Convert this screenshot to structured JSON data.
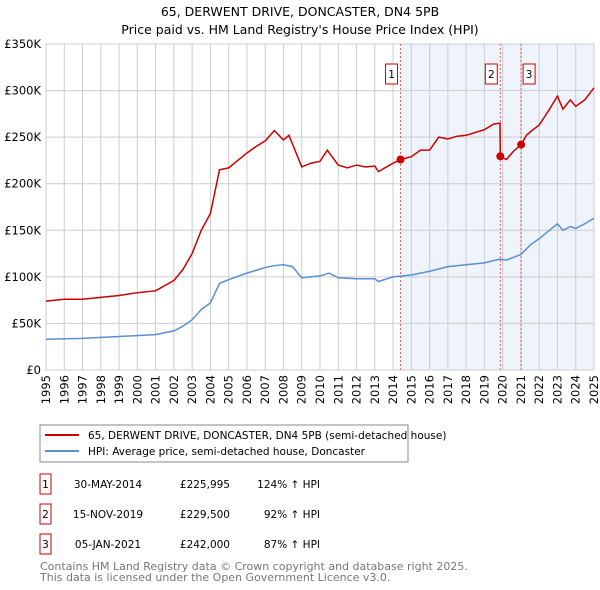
{
  "chart_data": {
    "type": "line",
    "title": "65, DERWENT DRIVE, DONCASTER, DN4 5PB",
    "subtitle": "Price paid vs. HM Land Registry's House Price Index (HPI)",
    "xlabel": "",
    "ylabel": "",
    "xlim": [
      1995,
      2025
    ],
    "ylim": [
      0,
      350000
    ],
    "x_ticks": [
      "1995",
      "1996",
      "1997",
      "1998",
      "1999",
      "2000",
      "2001",
      "2002",
      "2003",
      "2004",
      "2005",
      "2006",
      "2007",
      "2008",
      "2009",
      "2010",
      "2011",
      "2012",
      "2013",
      "2014",
      "2015",
      "2016",
      "2017",
      "2018",
      "2019",
      "2020",
      "2021",
      "2022",
      "2023",
      "2024",
      "2025"
    ],
    "y_ticks": [
      {
        "value": 0,
        "label": "£0"
      },
      {
        "value": 50000,
        "label": "£50K"
      },
      {
        "value": 100000,
        "label": "£100K"
      },
      {
        "value": 150000,
        "label": "£150K"
      },
      {
        "value": 200000,
        "label": "£200K"
      },
      {
        "value": 250000,
        "label": "£250K"
      },
      {
        "value": 300000,
        "label": "£300K"
      },
      {
        "value": 350000,
        "label": "£350K"
      }
    ],
    "grid": true,
    "shaded_from": 2014.41,
    "series": [
      {
        "name": "65, DERWENT DRIVE, DONCASTER, DN4 5PB (semi-detached house)",
        "color": "#cc0000",
        "x": [
          1995,
          1996,
          1997,
          1998,
          1999,
          2000,
          2001,
          2002,
          2002.5,
          2003,
          2003.5,
          2004,
          2004.5,
          2005,
          2005.5,
          2006,
          2006.5,
          2007,
          2007.5,
          2008,
          2008.3,
          2009,
          2009.5,
          2010,
          2010.4,
          2011,
          2011.5,
          2012,
          2012.5,
          2013,
          2013.2,
          2014,
          2014.41,
          2015,
          2015.5,
          2016,
          2016.5,
          2017,
          2017.5,
          2018,
          2018.5,
          2019,
          2019.5,
          2019.85,
          2019.87,
          2020.2,
          2020.6,
          2021.01,
          2021.3,
          2021.6,
          2022,
          2022.5,
          2023,
          2023.3,
          2023.7,
          2024,
          2024.5,
          2025
        ],
        "y": [
          74000,
          76000,
          76000,
          78000,
          80000,
          83000,
          85000,
          96000,
          108000,
          125000,
          150000,
          168000,
          215000,
          217000,
          225000,
          233000,
          240000,
          246000,
          257000,
          247000,
          252000,
          218000,
          222000,
          224000,
          236000,
          220000,
          217000,
          220000,
          218000,
          219000,
          213000,
          222000,
          225995,
          229000,
          236000,
          236000,
          250000,
          248000,
          251000,
          252000,
          255000,
          258000,
          264000,
          265000,
          229500,
          226000,
          235000,
          242000,
          252000,
          257000,
          263000,
          278000,
          294000,
          280000,
          290000,
          283000,
          290000,
          303000
        ]
      },
      {
        "name": "HPI: Average price, semi-detached house, Doncaster",
        "color": "#5b8fd0",
        "x": [
          1995,
          1997,
          1999,
          2001,
          2002,
          2002.5,
          2003,
          2003.5,
          2004,
          2004.5,
          2005,
          2006,
          2007,
          2007.5,
          2008,
          2008.5,
          2009,
          2010,
          2010.5,
          2011,
          2012,
          2013,
          2013.2,
          2014,
          2015,
          2016,
          2017,
          2018,
          2019,
          2019.85,
          2020.2,
          2021,
          2021.5,
          2022,
          2022.5,
          2023,
          2023.3,
          2023.7,
          2024,
          2024.5,
          2025
        ],
        "y": [
          33000,
          34000,
          36000,
          38000,
          42000,
          47000,
          54000,
          65000,
          72000,
          93000,
          97000,
          104000,
          110000,
          112000,
          113000,
          111000,
          99000,
          101000,
          104000,
          99000,
          98000,
          98000,
          95000,
          100000,
          102000,
          106000,
          111000,
          113000,
          115000,
          119000,
          118000,
          124000,
          134000,
          141000,
          149000,
          157000,
          150000,
          154000,
          152000,
          157000,
          163000
        ]
      }
    ],
    "annotations": [
      {
        "label": "1",
        "x": 2014.41,
        "y": 225995,
        "date": "30-MAY-2014",
        "price": "£225,995",
        "hpi": "124% ↑ HPI"
      },
      {
        "label": "2",
        "x": 2019.87,
        "y": 229500,
        "date": "15-NOV-2019",
        "price": "£229,500",
        "hpi": "92% ↑ HPI"
      },
      {
        "label": "3",
        "x": 2021.01,
        "y": 242000,
        "date": "05-JAN-2021",
        "price": "£242,000",
        "hpi": "87% ↑ HPI"
      }
    ],
    "legend_position": "below"
  },
  "footer": {
    "line1": "Contains HM Land Registry data © Crown copyright and database right 2025.",
    "line2": "This data is licensed under the Open Government Licence v3.0."
  }
}
